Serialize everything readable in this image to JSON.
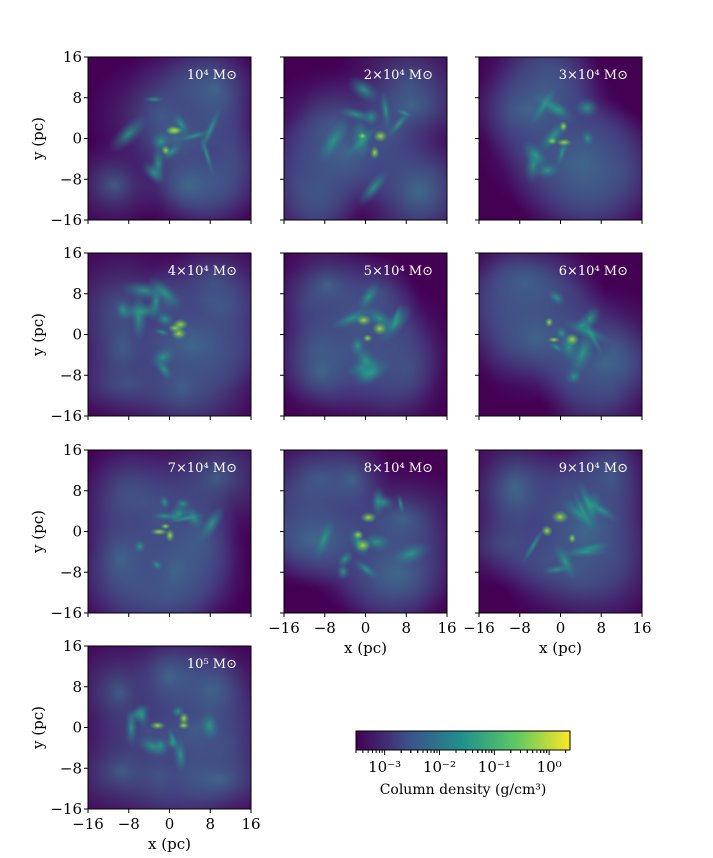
{
  "chart_data": [
    {
      "type": "image",
      "title": "10⁴ M⊙",
      "xlim": [
        -16,
        16
      ],
      "ylim": [
        -16,
        16
      ],
      "xticks": [
        {
          "value": -16,
          "label": "−16"
        },
        {
          "value": -8,
          "label": "−8"
        },
        0,
        8,
        16
      ],
      "yticks": [
        {
          "value": -16,
          "label": "−16"
        },
        {
          "value": -8,
          "label": "−8"
        },
        0,
        8,
        16
      ],
      "ylabel": "y (pc)",
      "show_xticklabels": false,
      "show_yticklabels": true
    },
    {
      "type": "image",
      "title": "2×10⁴ M⊙",
      "xlim": [
        -16,
        16
      ],
      "ylim": [
        -16,
        16
      ],
      "xticks": [
        {
          "value": -16,
          "label": "−16"
        },
        {
          "value": -8,
          "label": "−8"
        },
        0,
        8,
        16
      ],
      "yticks": [
        {
          "value": -16,
          "label": "−16"
        },
        {
          "value": -8,
          "label": "−8"
        },
        0,
        8,
        16
      ],
      "show_xticklabels": false,
      "show_yticklabels": false
    },
    {
      "type": "image",
      "title": "3×10⁴ M⊙",
      "xlim": [
        -16,
        16
      ],
      "ylim": [
        -16,
        16
      ],
      "xticks": [
        {
          "value": -16,
          "label": "−16"
        },
        {
          "value": -8,
          "label": "−8"
        },
        0,
        8,
        16
      ],
      "yticks": [
        {
          "value": -16,
          "label": "−16"
        },
        {
          "value": -8,
          "label": "−8"
        },
        0,
        8,
        16
      ],
      "show_xticklabels": false,
      "show_yticklabels": false
    },
    {
      "type": "image",
      "title": "4×10⁴ M⊙",
      "xlim": [
        -16,
        16
      ],
      "ylim": [
        -16,
        16
      ],
      "xticks": [
        {
          "value": -16,
          "label": "−16"
        },
        {
          "value": -8,
          "label": "−8"
        },
        0,
        8,
        16
      ],
      "yticks": [
        {
          "value": -16,
          "label": "−16"
        },
        {
          "value": -8,
          "label": "−8"
        },
        0,
        8,
        16
      ],
      "ylabel": "y (pc)",
      "show_xticklabels": false,
      "show_yticklabels": true
    },
    {
      "type": "image",
      "title": "5×10⁴ M⊙",
      "xlim": [
        -16,
        16
      ],
      "ylim": [
        -16,
        16
      ],
      "xticks": [
        {
          "value": -16,
          "label": "−16"
        },
        {
          "value": -8,
          "label": "−8"
        },
        0,
        8,
        16
      ],
      "yticks": [
        {
          "value": -16,
          "label": "−16"
        },
        {
          "value": -8,
          "label": "−8"
        },
        0,
        8,
        16
      ],
      "show_xticklabels": false,
      "show_yticklabels": false
    },
    {
      "type": "image",
      "title": "6×10⁴ M⊙",
      "xlim": [
        -16,
        16
      ],
      "ylim": [
        -16,
        16
      ],
      "xticks": [
        {
          "value": -16,
          "label": "−16"
        },
        {
          "value": -8,
          "label": "−8"
        },
        0,
        8,
        16
      ],
      "yticks": [
        {
          "value": -16,
          "label": "−16"
        },
        {
          "value": -8,
          "label": "−8"
        },
        0,
        8,
        16
      ],
      "show_xticklabels": false,
      "show_yticklabels": false
    },
    {
      "type": "image",
      "title": "7×10⁴ M⊙",
      "xlim": [
        -16,
        16
      ],
      "ylim": [
        -16,
        16
      ],
      "xticks": [
        {
          "value": -16,
          "label": "−16"
        },
        {
          "value": -8,
          "label": "−8"
        },
        0,
        8,
        16
      ],
      "yticks": [
        {
          "value": -16,
          "label": "−16"
        },
        {
          "value": -8,
          "label": "−8"
        },
        0,
        8,
        16
      ],
      "ylabel": "y (pc)",
      "show_xticklabels": false,
      "show_yticklabels": true
    },
    {
      "type": "image",
      "title": "8×10⁴ M⊙",
      "xlim": [
        -16,
        16
      ],
      "ylim": [
        -16,
        16
      ],
      "xticks": [
        {
          "value": -16,
          "label": "−16"
        },
        {
          "value": -8,
          "label": "−8"
        },
        0,
        8,
        16
      ],
      "yticks": [
        {
          "value": -16,
          "label": "−16"
        },
        {
          "value": -8,
          "label": "−8"
        },
        0,
        8,
        16
      ],
      "xlabel": "x (pc)",
      "show_xticklabels": true,
      "show_yticklabels": false
    },
    {
      "type": "image",
      "title": "9×10⁴ M⊙",
      "xlim": [
        -16,
        16
      ],
      "ylim": [
        -16,
        16
      ],
      "xticks": [
        {
          "value": -16,
          "label": "−16"
        },
        {
          "value": -8,
          "label": "−8"
        },
        0,
        8,
        16
      ],
      "yticks": [
        {
          "value": -16,
          "label": "−16"
        },
        {
          "value": -8,
          "label": "−8"
        },
        0,
        8,
        16
      ],
      "xlabel": "x (pc)",
      "show_xticklabels": true,
      "show_yticklabels": false
    },
    {
      "type": "image",
      "title": "10⁵ M⊙",
      "xlim": [
        -16,
        16
      ],
      "ylim": [
        -16,
        16
      ],
      "xticks": [
        {
          "value": -16,
          "label": "−16"
        },
        {
          "value": -8,
          "label": "−8"
        },
        0,
        8,
        16
      ],
      "yticks": [
        {
          "value": -16,
          "label": "−16"
        },
        {
          "value": -8,
          "label": "−8"
        },
        0,
        8,
        16
      ],
      "xlabel": "x (pc)",
      "ylabel": "y (pc)",
      "show_xticklabels": true,
      "show_yticklabels": true
    },
    {
      "type": "colorbar",
      "label": "Column density (g/cm³)",
      "log_scale": true,
      "xlim": [
        0.0003,
        2.4
      ],
      "xticks": [
        {
          "value": 0.001,
          "label": "10⁻³"
        },
        {
          "value": 0.01,
          "label": "10⁻²"
        },
        {
          "value": 0.1,
          "label": "10⁻¹"
        },
        {
          "value": 1,
          "label": "10⁰"
        }
      ],
      "colors": [
        "#440154",
        "#3b528b",
        "#21918c",
        "#5ec962",
        "#fde725"
      ]
    }
  ]
}
